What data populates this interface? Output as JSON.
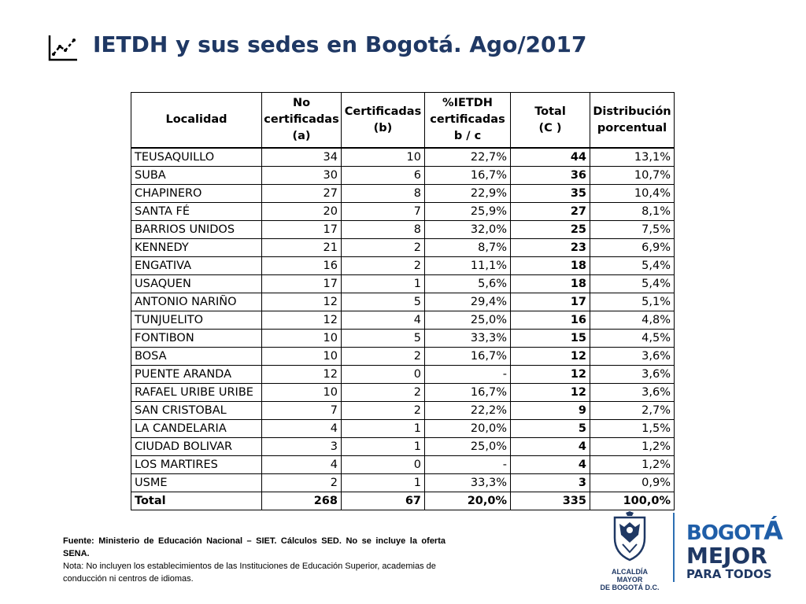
{
  "title": "IETDH y sus sedes en Bogotá. Ago/2017",
  "title_icon": "line-chart-icon",
  "table": {
    "headers": {
      "localidad": "Localidad",
      "no_cert_1": "No",
      "no_cert_2": "certificadas",
      "no_cert_3": "(a)",
      "cert_1": "Certificadas",
      "cert_2": "(b)",
      "pct_1": "%IETDH",
      "pct_2": "certificadas",
      "pct_3": "b / c",
      "total_1": "Total",
      "total_2": "(C )",
      "dist_1": "Distribución",
      "dist_2": "porcentual"
    },
    "rows": [
      [
        "TEUSAQUILLO",
        "34",
        "10",
        "22,7%",
        "44",
        "13,1%"
      ],
      [
        "SUBA",
        "30",
        "6",
        "16,7%",
        "36",
        "10,7%"
      ],
      [
        "CHAPINERO",
        "27",
        "8",
        "22,9%",
        "35",
        "10,4%"
      ],
      [
        "SANTA FÉ",
        "20",
        "7",
        "25,9%",
        "27",
        "8,1%"
      ],
      [
        "BARRIOS UNIDOS",
        "17",
        "8",
        "32,0%",
        "25",
        "7,5%"
      ],
      [
        "KENNEDY",
        "21",
        "2",
        "8,7%",
        "23",
        "6,9%"
      ],
      [
        "ENGATIVA",
        "16",
        "2",
        "11,1%",
        "18",
        "5,4%"
      ],
      [
        "USAQUEN",
        "17",
        "1",
        "5,6%",
        "18",
        "5,4%"
      ],
      [
        "ANTONIO NARIÑO",
        "12",
        "5",
        "29,4%",
        "17",
        "5,1%"
      ],
      [
        "TUNJUELITO",
        "12",
        "4",
        "25,0%",
        "16",
        "4,8%"
      ],
      [
        "FONTIBON",
        "10",
        "5",
        "33,3%",
        "15",
        "4,5%"
      ],
      [
        "BOSA",
        "10",
        "2",
        "16,7%",
        "12",
        "3,6%"
      ],
      [
        "PUENTE ARANDA",
        "12",
        "0",
        "-",
        "12",
        "3,6%"
      ],
      [
        "RAFAEL URIBE URIBE",
        "10",
        "2",
        "16,7%",
        "12",
        "3,6%"
      ],
      [
        "SAN CRISTOBAL",
        "7",
        "2",
        "22,2%",
        "9",
        "2,7%"
      ],
      [
        "LA CANDELARIA",
        "4",
        "1",
        "20,0%",
        "5",
        "1,5%"
      ],
      [
        "CIUDAD BOLIVAR",
        "3",
        "1",
        "25,0%",
        "4",
        "1,2%"
      ],
      [
        "LOS MARTIRES",
        "4",
        "0",
        "-",
        "4",
        "1,2%"
      ],
      [
        "USME",
        "2",
        "1",
        "33,3%",
        "3",
        "0,9%"
      ]
    ],
    "total": [
      "Total",
      "268",
      "67",
      "20,0%",
      "335",
      "100,0%"
    ]
  },
  "source": "Fuente: Ministerio de Educación Nacional – SIET. Cálculos SED. No se incluye la oferta SENA.",
  "note": "Nota: No incluyen los establecimientos de las Instituciones de Educación Superior, academias de conducción ni centros de idiomas.",
  "logo_alcaldia": {
    "line1": "ALCALDÍA MAYOR",
    "line2": "DE BOGOTÁ D.C."
  },
  "logo_bogota": {
    "line1_small": "BOGOT",
    "line1_big": "Á",
    "line2": "MEJOR",
    "line3": "PARA TODOS"
  },
  "colors": {
    "title": "#1f3864",
    "brand_blue": "#1f5ea8"
  }
}
